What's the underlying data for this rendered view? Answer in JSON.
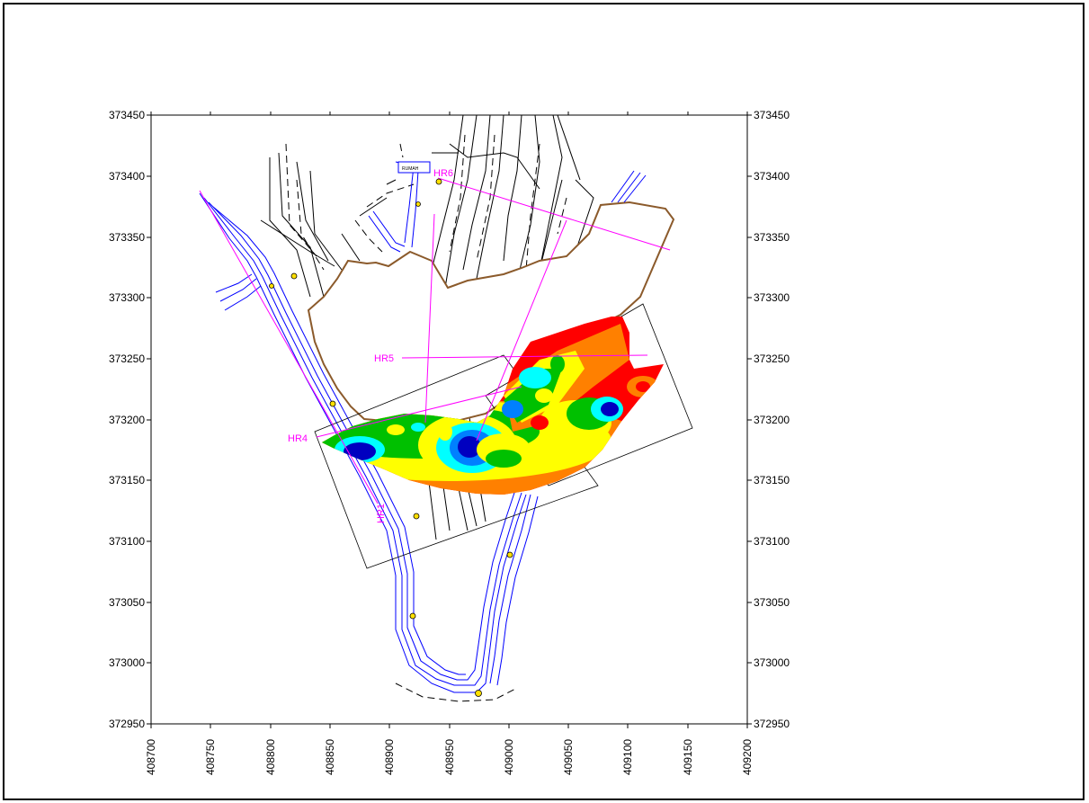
{
  "map": {
    "x_axis_labels": [
      "408700",
      "408750",
      "408800",
      "408850",
      "408900",
      "408950",
      "409000",
      "409050",
      "409100",
      "409150",
      "409200"
    ],
    "y_axis_labels": [
      "373450",
      "373400",
      "373350",
      "373300",
      "373250",
      "373200",
      "373150",
      "373100",
      "373050",
      "373000",
      "372950"
    ],
    "profile_labels": {
      "hr1": "HR1",
      "hr4": "HR4",
      "hr5": "HR5",
      "hr6": "HR6"
    },
    "building_label": "RUMAH",
    "colors": {
      "river": "#0000ff",
      "boundary": "#8b5a2b",
      "profile": "#ff00ff",
      "marker": "#ffe000"
    },
    "legend": []
  }
}
